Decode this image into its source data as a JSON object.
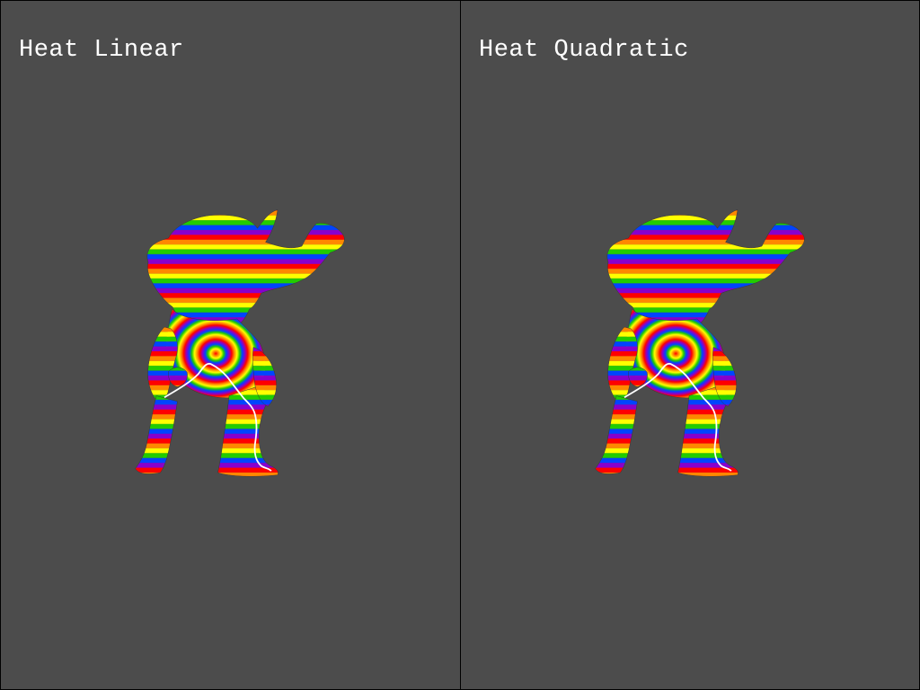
{
  "viewports": [
    {
      "title": "Heat Linear"
    },
    {
      "title": "Heat Quadratic"
    }
  ],
  "colors": {
    "background": "#4c4c4c",
    "divider": "#000000",
    "title_text": "#ffffff",
    "geodesic_path": "#ffffff",
    "band_palette": [
      "#ff0000",
      "#ff8800",
      "#ffff00",
      "#00cc00",
      "#0044ff",
      "#8800cc"
    ]
  },
  "mesh": {
    "model": "armadillo",
    "shading": "geodesic-distance-stripes",
    "icon": "armadillo-mesh-icon"
  }
}
